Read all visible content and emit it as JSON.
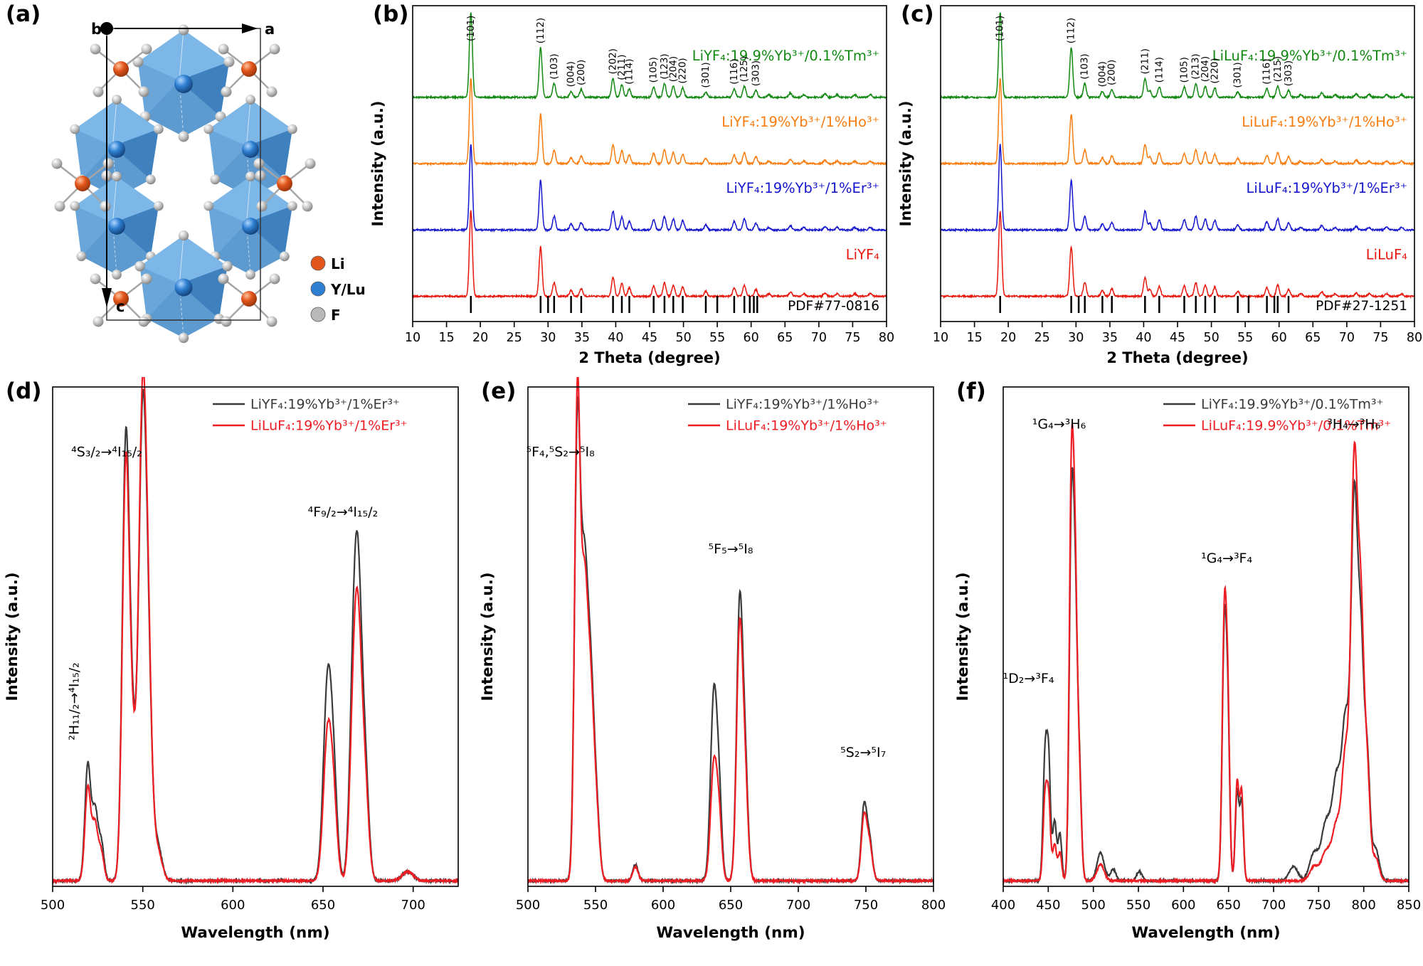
{
  "panel_a": {
    "label": "(a)",
    "axis_labels": {
      "a": "a",
      "b": "b",
      "c": "c"
    },
    "legend": [
      {
        "name": "Li",
        "color": "#e2551b"
      },
      {
        "name": "Y/Lu",
        "color": "#2e7fd1"
      },
      {
        "name": "F",
        "color": "#b9b9b9"
      }
    ]
  },
  "chart_data": [
    {
      "id": "b",
      "panel": "(b)",
      "kind": "xrd",
      "type": "line",
      "xlabel": "2 Theta (degree)",
      "ylabel": "Intensity (a.u.)",
      "xlim": [
        10,
        80
      ],
      "xticks": [
        10,
        15,
        20,
        25,
        30,
        35,
        40,
        45,
        50,
        55,
        60,
        65,
        70,
        75,
        80
      ],
      "series": [
        {
          "name": "LiYF₄:19.9%Yb³⁺/0.1%Tm³⁺",
          "color": "#138813",
          "base_frac": 0.71
        },
        {
          "name": "LiYF₄:19%Yb³⁺/1%Ho³⁺",
          "color": "#f87d11",
          "base_frac": 0.5
        },
        {
          "name": "LiYF₄:19%Yb³⁺/1%Er³⁺",
          "color": "#1616cf",
          "base_frac": 0.29
        },
        {
          "name": "LiYF₄",
          "color": "#e8170e",
          "base_frac": 0.08
        }
      ],
      "peaks": [
        {
          "hkl": "(101)",
          "two_theta": 18.6,
          "intensity": 100
        },
        {
          "hkl": "(112)",
          "two_theta": 28.9,
          "intensity": 58
        },
        {
          "hkl": "(103)",
          "two_theta": 30.9,
          "intensity": 16
        },
        {
          "hkl": "(004)",
          "two_theta": 33.4,
          "intensity": 7
        },
        {
          "hkl": "(200)",
          "two_theta": 34.9,
          "intensity": 9
        },
        {
          "hkl": "(202)",
          "two_theta": 39.6,
          "intensity": 22
        },
        {
          "hkl": "(211)",
          "two_theta": 40.9,
          "intensity": 15
        },
        {
          "hkl": "(114)",
          "two_theta": 42.0,
          "intensity": 10
        },
        {
          "hkl": "(105)",
          "two_theta": 45.6,
          "intensity": 12
        },
        {
          "hkl": "(123)",
          "two_theta": 47.2,
          "intensity": 16
        },
        {
          "hkl": "(204)",
          "two_theta": 48.5,
          "intensity": 13
        },
        {
          "hkl": "(220)",
          "two_theta": 49.9,
          "intensity": 11
        },
        {
          "hkl": "(301)",
          "two_theta": 53.3,
          "intensity": 6
        },
        {
          "hkl": "(116)",
          "two_theta": 57.5,
          "intensity": 10
        },
        {
          "hkl": "(125)",
          "two_theta": 59.0,
          "intensity": 13
        },
        {
          "hkl": "(303)",
          "two_theta": 60.7,
          "intensity": 8
        }
      ],
      "minor_peaks": [
        [
          62.6,
          3
        ],
        [
          65.8,
          5
        ],
        [
          67.8,
          3
        ],
        [
          70.9,
          4
        ],
        [
          72.7,
          3
        ],
        [
          75.3,
          3
        ],
        [
          77.6,
          3
        ]
      ],
      "reference": {
        "label": "PDF#77-0816",
        "ticks": [
          18.6,
          28.9,
          30.0,
          30.9,
          33.4,
          34.9,
          39.6,
          40.9,
          42.0,
          45.6,
          47.2,
          48.5,
          49.9,
          53.3,
          55.0,
          57.5,
          59.0,
          59.8,
          60.4,
          60.9
        ]
      }
    },
    {
      "id": "c",
      "panel": "(c)",
      "kind": "xrd",
      "type": "line",
      "xlabel": "2 Theta (degree)",
      "ylabel": "Intensity (a.u.)",
      "xlim": [
        10,
        80
      ],
      "xticks": [
        10,
        15,
        20,
        25,
        30,
        35,
        40,
        45,
        50,
        55,
        60,
        65,
        70,
        75,
        80
      ],
      "series": [
        {
          "name": "LiLuF₄:19.9%Yb³⁺/0.1%Tm³⁺",
          "color": "#138813",
          "base_frac": 0.71
        },
        {
          "name": "LiLuF₄:19%Yb³⁺/1%Ho³⁺",
          "color": "#f87d11",
          "base_frac": 0.5
        },
        {
          "name": "LiLuF₄:19%Yb³⁺/1%Er³⁺",
          "color": "#1616cf",
          "base_frac": 0.29
        },
        {
          "name": "LiLuF₄",
          "color": "#e8170e",
          "base_frac": 0.08
        }
      ],
      "peaks": [
        {
          "hkl": "(101)",
          "two_theta": 18.8,
          "intensity": 100
        },
        {
          "hkl": "(112)",
          "two_theta": 29.3,
          "intensity": 58
        },
        {
          "hkl": "(103)",
          "two_theta": 31.3,
          "intensity": 16
        },
        {
          "hkl": "(004)",
          "two_theta": 33.9,
          "intensity": 7
        },
        {
          "hkl": "(200)",
          "two_theta": 35.3,
          "intensity": 9
        },
        {
          "hkl": "(211)",
          "two_theta": 40.2,
          "intensity": 22
        },
        {
          "hkl": "(114)",
          "two_theta": 42.3,
          "intensity": 12
        },
        {
          "hkl": "(105)",
          "two_theta": 46.0,
          "intensity": 12
        },
        {
          "hkl": "(213)",
          "two_theta": 47.7,
          "intensity": 16
        },
        {
          "hkl": "(204)",
          "two_theta": 49.1,
          "intensity": 13
        },
        {
          "hkl": "(220)",
          "two_theta": 50.5,
          "intensity": 11
        },
        {
          "hkl": "(301)",
          "two_theta": 53.9,
          "intensity": 6
        },
        {
          "hkl": "(116)",
          "two_theta": 58.2,
          "intensity": 10
        },
        {
          "hkl": "(215)",
          "two_theta": 59.8,
          "intensity": 13
        },
        {
          "hkl": "(303)",
          "two_theta": 61.4,
          "intensity": 8
        }
      ],
      "minor_peaks": [
        [
          40.9,
          8
        ],
        [
          63.2,
          3
        ],
        [
          66.3,
          5
        ],
        [
          68.3,
          3
        ],
        [
          71.4,
          4
        ],
        [
          73.3,
          3
        ],
        [
          75.9,
          3
        ],
        [
          78.1,
          3
        ]
      ],
      "reference": {
        "label": "PDF#27-1251",
        "ticks": [
          18.8,
          29.3,
          30.4,
          31.3,
          33.9,
          35.3,
          40.2,
          42.3,
          46.0,
          47.7,
          49.1,
          50.5,
          53.9,
          55.5,
          58.2,
          59.3,
          59.8,
          61.4
        ]
      }
    },
    {
      "id": "d",
      "panel": "(d)",
      "kind": "spectrum",
      "type": "line",
      "xlabel": "Wavelength (nm)",
      "ylabel": "Intensity (a.u.)",
      "xlim": [
        500,
        725
      ],
      "ylim": [
        0,
        1.08
      ],
      "xticks": [
        500,
        550,
        600,
        650,
        700
      ],
      "series": [
        {
          "name": "LiYF₄:19%Yb³⁺/1%Er³⁺",
          "color": "#3a3a3a",
          "peaks": [
            [
              519.5,
              0.25,
              1.6
            ],
            [
              523.5,
              0.15,
              1.6
            ],
            [
              527,
              0.08,
              1.5
            ],
            [
              540.5,
              0.89,
              1.9
            ],
            [
              544,
              0.3,
              2.2
            ],
            [
              549.8,
              0.93,
              2.1
            ],
            [
              553,
              0.38,
              2
            ],
            [
              558,
              0.08,
              2.5
            ],
            [
              652.5,
              0.42,
              2.3
            ],
            [
              656,
              0.18,
              2
            ],
            [
              666,
              0.16,
              1.8
            ],
            [
              669,
              0.7,
              2.4
            ],
            [
              673.5,
              0.2,
              2
            ],
            [
              697,
              0.02,
              3
            ]
          ]
        },
        {
          "name": "LiLuF₄:19%Yb³⁺/1%Er³⁺",
          "color": "#ee1c23",
          "peaks": [
            [
              519.5,
              0.2,
              1.6
            ],
            [
              523.5,
              0.12,
              1.6
            ],
            [
              527,
              0.06,
              1.5
            ],
            [
              540.5,
              0.84,
              1.9
            ],
            [
              544,
              0.28,
              2.2
            ],
            [
              549.8,
              0.97,
              2.1
            ],
            [
              553,
              0.4,
              2
            ],
            [
              558,
              0.07,
              2.5
            ],
            [
              652.5,
              0.31,
              2.3
            ],
            [
              656,
              0.14,
              2
            ],
            [
              666,
              0.12,
              1.8
            ],
            [
              669,
              0.59,
              2.4
            ],
            [
              673.5,
              0.17,
              2
            ],
            [
              697,
              0.02,
              3
            ]
          ]
        }
      ],
      "annotations": [
        {
          "text": "⁴S₃/₂→⁴I₁₅/₂",
          "x": 530,
          "y": 0.93,
          "rotate": 0
        },
        {
          "text": "²H₁₁/₂→⁴I₁₅/₂",
          "x": 514.5,
          "y": 0.4,
          "rotate": -90
        },
        {
          "text": "⁴F₉/₂→⁴I₁₅/₂",
          "x": 661,
          "y": 0.8,
          "rotate": 0
        }
      ]
    },
    {
      "id": "e",
      "panel": "(e)",
      "kind": "spectrum",
      "type": "line",
      "xlabel": "Wavelength (nm)",
      "ylabel": "Intensity (a.u.)",
      "xlim": [
        500,
        800
      ],
      "ylim": [
        0,
        1.08
      ],
      "xticks": [
        500,
        550,
        600,
        650,
        700,
        750,
        800
      ],
      "series": [
        {
          "name": "LiYF₄:19%Yb³⁺/1%Ho³⁺",
          "color": "#3a3a3a",
          "peaks": [
            [
              536.5,
              0.93,
              2.1
            ],
            [
              541.5,
              0.63,
              2.6
            ],
            [
              546.5,
              0.4,
              2.6
            ],
            [
              551,
              0.12,
              2.2
            ],
            [
              579.5,
              0.035,
              2
            ],
            [
              637.5,
              0.4,
              2.4
            ],
            [
              641.5,
              0.16,
              2
            ],
            [
              656.5,
              0.57,
              2.2
            ],
            [
              660.5,
              0.25,
              2.2
            ],
            [
              748.5,
              0.15,
              2
            ],
            [
              752.5,
              0.09,
              2.2
            ]
          ]
        },
        {
          "name": "LiLuF₄:19%Yb³⁺/1%Ho³⁺",
          "color": "#ee1c23",
          "peaks": [
            [
              536.5,
              0.99,
              2
            ],
            [
              541.5,
              0.6,
              2.6
            ],
            [
              546.5,
              0.37,
              2.6
            ],
            [
              551,
              0.11,
              2.2
            ],
            [
              579.5,
              0.03,
              2
            ],
            [
              637.5,
              0.25,
              2.4
            ],
            [
              641.5,
              0.12,
              2
            ],
            [
              656.5,
              0.52,
              2.2
            ],
            [
              660.5,
              0.22,
              2.2
            ],
            [
              748.5,
              0.13,
              2
            ],
            [
              752.5,
              0.08,
              2.2
            ]
          ]
        }
      ],
      "annotations": [
        {
          "text": "⁵F₄,⁵S₂→⁵I₈",
          "x": 524,
          "y": 0.93,
          "rotate": 0
        },
        {
          "text": "⁵F₅→⁵I₈",
          "x": 650,
          "y": 0.72,
          "rotate": 0
        },
        {
          "text": "⁵S₂→⁵I₇",
          "x": 748,
          "y": 0.28,
          "rotate": 0
        }
      ]
    },
    {
      "id": "f",
      "panel": "(f)",
      "kind": "spectrum",
      "type": "line",
      "xlabel": "Wavelength (nm)",
      "ylabel": "Intensity (a.u.)",
      "xlim": [
        400,
        850
      ],
      "ylim": [
        0,
        1.08
      ],
      "xticks": [
        400,
        450,
        500,
        550,
        600,
        650,
        700,
        750,
        800,
        850
      ],
      "series": [
        {
          "name": "LiYF₄:19.9%Yb³⁺/0.1%Tm³⁺",
          "color": "#3a3a3a",
          "peaks": [
            [
              446.5,
              0.27,
              2.2
            ],
            [
              450.5,
              0.24,
              2
            ],
            [
              457,
              0.13,
              2.2
            ],
            [
              463,
              0.1,
              2
            ],
            [
              475.5,
              0.72,
              2.3
            ],
            [
              479.5,
              0.55,
              2.3
            ],
            [
              484,
              0.26,
              2.5
            ],
            [
              508,
              0.06,
              4
            ],
            [
              522,
              0.025,
              3
            ],
            [
              551,
              0.02,
              3
            ],
            [
              645.5,
              0.55,
              2.4
            ],
            [
              649.5,
              0.28,
              2
            ],
            [
              659.5,
              0.19,
              2
            ],
            [
              664.5,
              0.17,
              2
            ],
            [
              722,
              0.03,
              5
            ],
            [
              745,
              0.06,
              5
            ],
            [
              758,
              0.12,
              5
            ],
            [
              770,
              0.22,
              5
            ],
            [
              780,
              0.32,
              4
            ],
            [
              789.5,
              0.8,
              3.6
            ],
            [
              797,
              0.48,
              3.4
            ],
            [
              804,
              0.24,
              3
            ],
            [
              813,
              0.07,
              4
            ]
          ]
        },
        {
          "name": "LiLuF₄:19.9%Yb³⁺/0.1%Tm³⁺",
          "color": "#ee1c23",
          "peaks": [
            [
              446.5,
              0.18,
              2.2
            ],
            [
              450.5,
              0.16,
              2
            ],
            [
              457,
              0.08,
              2.2
            ],
            [
              463,
              0.06,
              2
            ],
            [
              475.5,
              0.8,
              2.3
            ],
            [
              479.5,
              0.6,
              2.3
            ],
            [
              484,
              0.24,
              2.5
            ],
            [
              508,
              0.035,
              4
            ],
            [
              645.5,
              0.58,
              2.4
            ],
            [
              649.5,
              0.3,
              2
            ],
            [
              659.5,
              0.21,
              2
            ],
            [
              664.5,
              0.19,
              2
            ],
            [
              745,
              0.03,
              5
            ],
            [
              758,
              0.06,
              5
            ],
            [
              770,
              0.12,
              5
            ],
            [
              780,
              0.26,
              4
            ],
            [
              789.5,
              0.88,
              3.6
            ],
            [
              797,
              0.55,
              3.4
            ],
            [
              804,
              0.22,
              3
            ],
            [
              813,
              0.05,
              4
            ]
          ]
        }
      ],
      "annotations": [
        {
          "text": "¹D₂→³F₄",
          "x": 428,
          "y": 0.44,
          "rotate": 0
        },
        {
          "text": "¹G₄→³H₆",
          "x": 462,
          "y": 0.99,
          "rotate": 0
        },
        {
          "text": "¹G₄→³F₄",
          "x": 648,
          "y": 0.7,
          "rotate": 0
        },
        {
          "text": "³H₄→³H₆",
          "x": 789,
          "y": 0.99,
          "rotate": 0
        }
      ]
    }
  ]
}
